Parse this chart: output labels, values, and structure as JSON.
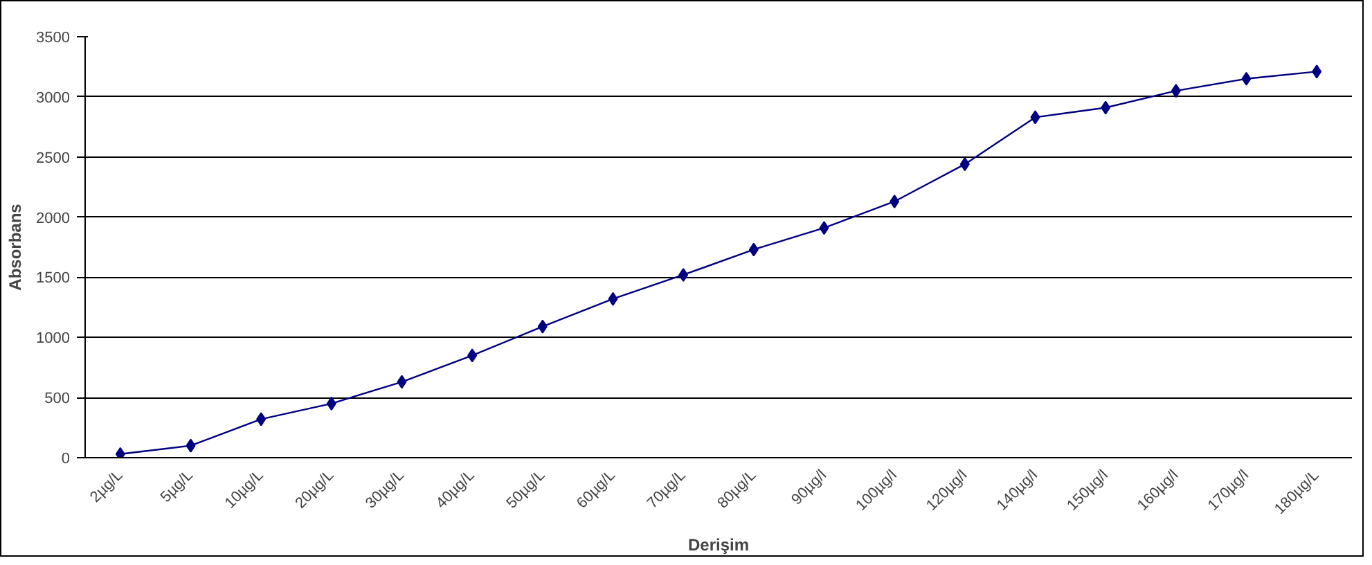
{
  "chart_data": {
    "type": "line",
    "xlabel": "Derişim",
    "ylabel": "Absorbans",
    "categories": [
      "2µg/L",
      "5µg/L",
      "10µg/L",
      "20µg/L",
      "30µg/L",
      "40µg/L",
      "50µg/L",
      "60µg/L",
      "70µg/L",
      "80µg/L",
      "90µg/l",
      "100µg/l",
      "120µg/l",
      "140µg/l",
      "150µg/l",
      "160µg/l",
      "170µg/l",
      "180µg/L"
    ],
    "series": [
      {
        "color": "#000080",
        "values": [
          30,
          100,
          320,
          450,
          630,
          850,
          1090,
          1320,
          1520,
          1730,
          1910,
          2130,
          2440,
          2830,
          2910,
          3050,
          3150,
          3210
        ]
      }
    ],
    "ylim": [
      0,
      3500
    ],
    "yticks": [
      0,
      500,
      1000,
      1500,
      2000,
      2500,
      3000,
      3500
    ],
    "grid": "y",
    "marker": "diamond",
    "line_style": "solid"
  }
}
